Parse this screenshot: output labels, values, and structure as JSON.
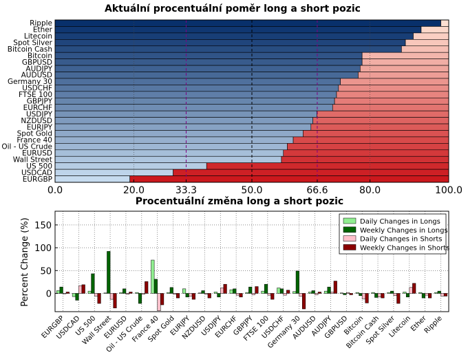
{
  "colors": {
    "long_dark": "#08306b",
    "long_light": "#c6dbef",
    "short_light": "#fee0d2",
    "short_dark": "#cb181d",
    "mark_33": "#800080",
    "mark_66": "#800080",
    "daily_longs": "#90ee90",
    "weekly_longs": "#006400",
    "daily_shorts": "#ffc0cb",
    "weekly_shorts": "#8b0000"
  },
  "chart_data": [
    {
      "type": "bar",
      "orientation": "horizontal-stacked",
      "title": "Aktuální procentuální poměr long a short pozic",
      "categories": [
        "Ripple",
        "Ether",
        "Litecoin",
        "Spot Silver",
        "Bitcoin Cash",
        "Bitcoin",
        "GBPUSD",
        "AUDJPY",
        "AUDUSD",
        "Germany 30",
        "USDCHF",
        "FTSE 100",
        "GBPJPY",
        "EURCHF",
        "USDJPY",
        "NZDUSD",
        "EURJPY",
        "Spot Gold",
        "France 40",
        "Oil - US Crude",
        "EURUSD",
        "Wall Street",
        "US 500",
        "USDCAD",
        "EURGBP"
      ],
      "long_percent": [
        98,
        93,
        91,
        89,
        88,
        78,
        78,
        77.5,
        77,
        72.5,
        72,
        71.5,
        71,
        70.5,
        66.5,
        65.5,
        65,
        63,
        60.5,
        59,
        58,
        57.5,
        38.5,
        30,
        19
      ],
      "xlim": [
        0,
        100
      ],
      "xticks": [
        "0.0",
        "20.0",
        "33.3",
        "50.0",
        "66.6",
        "80.0",
        "100.0"
      ],
      "xtick_values": [
        0,
        20,
        33.3,
        50,
        66.6,
        80,
        100
      ],
      "reference_lines": [
        33.3,
        50,
        66.6
      ],
      "grid": true
    },
    {
      "type": "bar",
      "orientation": "vertical-grouped",
      "title": "Procentuální změna long a short pozic",
      "ylabel": "Percent Change (%)",
      "ylim": [
        -40,
        180
      ],
      "yticks": [
        0,
        50,
        100,
        150
      ],
      "categories": [
        "EURGBP",
        "USDCAD",
        "US 500",
        "Wall Street",
        "EURUSD",
        "Oil - US Crude",
        "France 40",
        "Spot Gold",
        "EURJPY",
        "NZDUSD",
        "USDJPY",
        "EURCHF",
        "GBPJPY",
        "FTSE 100",
        "USDCHF",
        "Germany 30",
        "AUDUSD",
        "AUDJPY",
        "GBPUSD",
        "Bitcoin",
        "Bitcoin Cash",
        "Spot Silver",
        "Litecoin",
        "Ether",
        "Ripple"
      ],
      "series": [
        {
          "name": "Daily Changes in Longs",
          "values": [
            6,
            -7,
            5,
            1,
            2,
            2,
            73,
            2,
            10,
            1,
            3,
            8,
            2,
            5,
            12,
            4,
            3,
            5,
            1,
            2,
            2,
            2,
            3,
            2,
            2
          ]
        },
        {
          "name": "Weekly Changes in Longs",
          "values": [
            14,
            -15,
            43,
            92,
            10,
            -22,
            31,
            13,
            -8,
            6,
            -8,
            10,
            14,
            20,
            10,
            49,
            6,
            14,
            -3,
            -5,
            -9,
            5,
            -8,
            -10,
            5
          ]
        },
        {
          "name": "Daily Changes in Shorts",
          "values": [
            -1,
            17,
            -6,
            -13,
            -2,
            -2,
            -38,
            -2,
            -6,
            -2,
            12,
            -4,
            -3,
            -4,
            -4,
            -6,
            -3,
            3,
            2,
            -12,
            -8,
            -5,
            13,
            -4,
            -6
          ]
        },
        {
          "name": "Weekly Changes in Shorts",
          "values": [
            3,
            19,
            -22,
            -32,
            3,
            26,
            -25,
            -10,
            -13,
            -10,
            20,
            -8,
            15,
            -13,
            7,
            -34,
            3,
            27,
            -3,
            -21,
            -10,
            -22,
            22,
            -10,
            -6
          ]
        }
      ],
      "legend": "top-right",
      "grid": true
    }
  ]
}
